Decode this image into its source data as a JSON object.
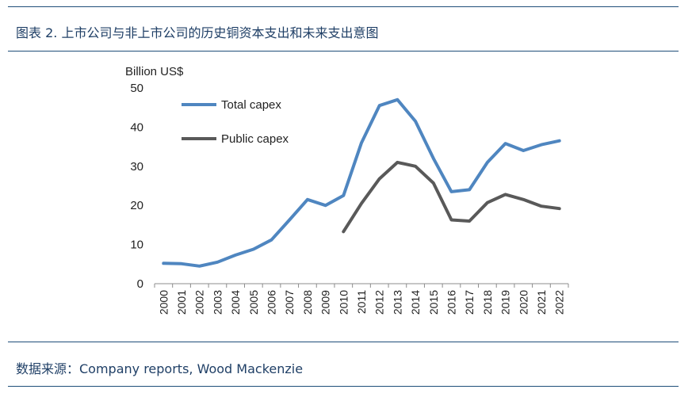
{
  "figure": {
    "caption": "图表 2. 上市公司与非上市公司的历史铜资本支出和未来支出意图",
    "source": "数据来源：Company reports, Wood Mackenzie"
  },
  "colors": {
    "rule": "#1f4e79",
    "total_series": "#4f86c0",
    "public_series": "#595959",
    "text": "#1f3f66"
  },
  "chart_data": {
    "type": "line",
    "title": "",
    "ylabel": "Billion US$",
    "xlabel": "",
    "ylim": [
      0,
      50
    ],
    "yticks": [
      0,
      10,
      20,
      30,
      40,
      50
    ],
    "grid": false,
    "legend_position": "top-left",
    "categories": [
      "2000",
      "2001",
      "2002",
      "2003",
      "2004",
      "2005",
      "2006",
      "2007",
      "2008",
      "2009",
      "2010",
      "2011",
      "2012",
      "2013",
      "2014",
      "2015",
      "2016",
      "2017",
      "2018",
      "2019",
      "2020",
      "2021",
      "2022"
    ],
    "series": [
      {
        "name": "Total capex",
        "color": "#4f86c0",
        "values": [
          5.2,
          5.1,
          4.5,
          5.5,
          7.3,
          8.8,
          11.2,
          16.3,
          21.5,
          20.0,
          22.5,
          36.0,
          45.5,
          47.0,
          41.5,
          32.0,
          23.5,
          24.0,
          31.0,
          35.8,
          34.0,
          35.5,
          36.5
        ]
      },
      {
        "name": "Public capex",
        "color": "#595959",
        "values": [
          null,
          null,
          null,
          null,
          null,
          null,
          null,
          null,
          null,
          null,
          13.3,
          20.5,
          26.8,
          31.0,
          30.0,
          25.7,
          16.3,
          16.0,
          20.7,
          22.8,
          21.5,
          19.8,
          19.2
        ]
      }
    ]
  }
}
